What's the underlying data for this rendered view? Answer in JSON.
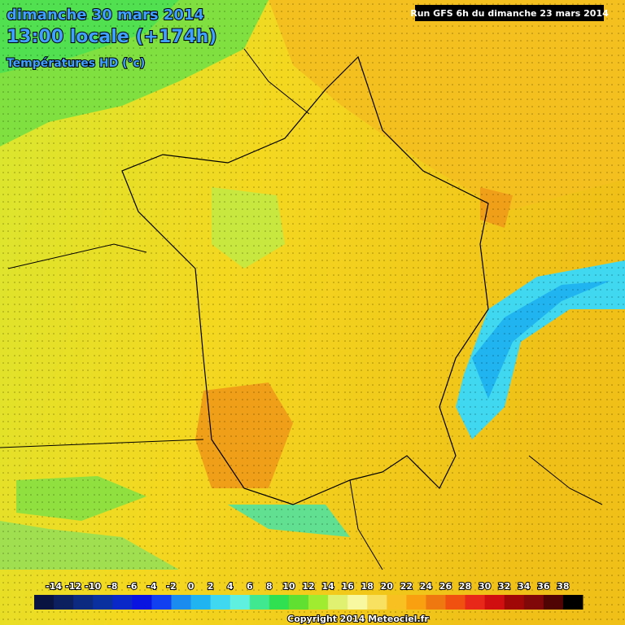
{
  "header": {
    "date": "dimanche 30 mars 2014",
    "time": "13:00 locale (+174h)",
    "field": "Températures HD (°c)",
    "run": "Run GFS 6h du dimanche 23 mars 2014"
  },
  "legend": {
    "ticks": [
      -14,
      -12,
      -10,
      -8,
      -6,
      -4,
      -2,
      0,
      2,
      4,
      6,
      8,
      10,
      12,
      14,
      16,
      18,
      20,
      22,
      24,
      26,
      28,
      30,
      32,
      34,
      36,
      38
    ],
    "colors": [
      "#0a1440",
      "#0c2060",
      "#0c2a80",
      "#0a30a0",
      "#0a28c8",
      "#0a14e0",
      "#1040f0",
      "#1a8cf0",
      "#20b4f0",
      "#40d8f0",
      "#60f0e0",
      "#40e890",
      "#30e050",
      "#60e030",
      "#a0ec30",
      "#e0f070",
      "#f8f8a0",
      "#f8e060",
      "#f8c020",
      "#f8a010",
      "#f07810",
      "#f05010",
      "#e82818",
      "#d01010",
      "#a00808",
      "#800808",
      "#500404",
      "#000000"
    ]
  },
  "footer": {
    "copyright": "Copyright 2014 Meteociel.fr"
  }
}
